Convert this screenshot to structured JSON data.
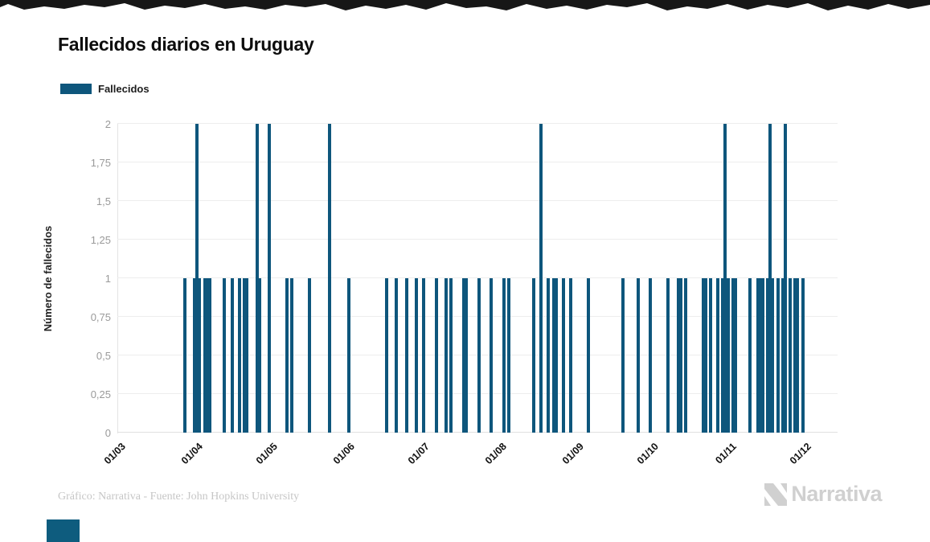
{
  "header": {
    "title": "Fallecidos diarios en Uruguay"
  },
  "legend": {
    "label": "Fallecidos",
    "color": "#0e567c"
  },
  "footer": {
    "credit": "Gráfico: Narrativa - Fuente: John Hopkins University",
    "logo_text": "Narrativa"
  },
  "colors": {
    "bar": "#0e567c",
    "grid": "#ededed",
    "tick_text": "#9a9a9a",
    "accent_block": "#0e5c7e"
  },
  "chart_data": {
    "type": "bar",
    "title": "Fallecidos diarios en Uruguay",
    "xlabel": "",
    "ylabel": "Número de fallecidos",
    "ylim": [
      0,
      2
    ],
    "grid": "horizontal",
    "legend_position": "top-left",
    "x_range": [
      "2020-03-01",
      "2020-12-15"
    ],
    "x_ticks": [
      {
        "date": "2020-03-01",
        "label": "01/03"
      },
      {
        "date": "2020-04-01",
        "label": "01/04"
      },
      {
        "date": "2020-05-01",
        "label": "01/05"
      },
      {
        "date": "2020-06-01",
        "label": "01/06"
      },
      {
        "date": "2020-07-01",
        "label": "01/07"
      },
      {
        "date": "2020-08-01",
        "label": "01/08"
      },
      {
        "date": "2020-09-01",
        "label": "01/09"
      },
      {
        "date": "2020-10-01",
        "label": "01/10"
      },
      {
        "date": "2020-11-01",
        "label": "01/11"
      },
      {
        "date": "2020-12-01",
        "label": "01/12"
      }
    ],
    "y_ticks": [
      {
        "value": 0,
        "label": "0"
      },
      {
        "value": 0.25,
        "label": "0,25"
      },
      {
        "value": 0.5,
        "label": "0,5"
      },
      {
        "value": 0.75,
        "label": "0,75"
      },
      {
        "value": 1,
        "label": "1"
      },
      {
        "value": 1.25,
        "label": "1,25"
      },
      {
        "value": 1.5,
        "label": "1,5"
      },
      {
        "value": 1.75,
        "label": "1,75"
      },
      {
        "value": 2,
        "label": "2"
      }
    ],
    "series": [
      {
        "name": "Fallecidos",
        "color": "#0e567c",
        "points": [
          {
            "date": "2020-03-28",
            "value": 1
          },
          {
            "date": "2020-04-01",
            "value": 1
          },
          {
            "date": "2020-04-02",
            "value": 2
          },
          {
            "date": "2020-04-03",
            "value": 1
          },
          {
            "date": "2020-04-05",
            "value": 1
          },
          {
            "date": "2020-04-06",
            "value": 1
          },
          {
            "date": "2020-04-07",
            "value": 1
          },
          {
            "date": "2020-04-13",
            "value": 1
          },
          {
            "date": "2020-04-16",
            "value": 1
          },
          {
            "date": "2020-04-19",
            "value": 1
          },
          {
            "date": "2020-04-21",
            "value": 1
          },
          {
            "date": "2020-04-22",
            "value": 1
          },
          {
            "date": "2020-04-26",
            "value": 2
          },
          {
            "date": "2020-04-27",
            "value": 1
          },
          {
            "date": "2020-05-01",
            "value": 2
          },
          {
            "date": "2020-05-08",
            "value": 1
          },
          {
            "date": "2020-05-10",
            "value": 1
          },
          {
            "date": "2020-05-17",
            "value": 1
          },
          {
            "date": "2020-05-25",
            "value": 2
          },
          {
            "date": "2020-06-02",
            "value": 1
          },
          {
            "date": "2020-06-17",
            "value": 1
          },
          {
            "date": "2020-06-21",
            "value": 1
          },
          {
            "date": "2020-06-25",
            "value": 1
          },
          {
            "date": "2020-06-29",
            "value": 1
          },
          {
            "date": "2020-07-02",
            "value": 1
          },
          {
            "date": "2020-07-07",
            "value": 1
          },
          {
            "date": "2020-07-11",
            "value": 1
          },
          {
            "date": "2020-07-13",
            "value": 1
          },
          {
            "date": "2020-07-18",
            "value": 1
          },
          {
            "date": "2020-07-19",
            "value": 1
          },
          {
            "date": "2020-07-24",
            "value": 1
          },
          {
            "date": "2020-07-29",
            "value": 1
          },
          {
            "date": "2020-08-03",
            "value": 1
          },
          {
            "date": "2020-08-05",
            "value": 1
          },
          {
            "date": "2020-08-15",
            "value": 1
          },
          {
            "date": "2020-08-18",
            "value": 2
          },
          {
            "date": "2020-08-21",
            "value": 1
          },
          {
            "date": "2020-08-23",
            "value": 1
          },
          {
            "date": "2020-08-24",
            "value": 1
          },
          {
            "date": "2020-08-27",
            "value": 1
          },
          {
            "date": "2020-08-30",
            "value": 1
          },
          {
            "date": "2020-09-06",
            "value": 1
          },
          {
            "date": "2020-09-20",
            "value": 1
          },
          {
            "date": "2020-09-26",
            "value": 1
          },
          {
            "date": "2020-10-01",
            "value": 1
          },
          {
            "date": "2020-10-08",
            "value": 1
          },
          {
            "date": "2020-10-12",
            "value": 1
          },
          {
            "date": "2020-10-13",
            "value": 1
          },
          {
            "date": "2020-10-15",
            "value": 1
          },
          {
            "date": "2020-10-22",
            "value": 1
          },
          {
            "date": "2020-10-23",
            "value": 1
          },
          {
            "date": "2020-10-25",
            "value": 1
          },
          {
            "date": "2020-10-28",
            "value": 1
          },
          {
            "date": "2020-10-30",
            "value": 1
          },
          {
            "date": "2020-10-31",
            "value": 2
          },
          {
            "date": "2020-11-01",
            "value": 1
          },
          {
            "date": "2020-11-03",
            "value": 1
          },
          {
            "date": "2020-11-04",
            "value": 1
          },
          {
            "date": "2020-11-10",
            "value": 1
          },
          {
            "date": "2020-11-13",
            "value": 1
          },
          {
            "date": "2020-11-14",
            "value": 1
          },
          {
            "date": "2020-11-15",
            "value": 1
          },
          {
            "date": "2020-11-17",
            "value": 1
          },
          {
            "date": "2020-11-18",
            "value": 2
          },
          {
            "date": "2020-11-19",
            "value": 1
          },
          {
            "date": "2020-11-21",
            "value": 1
          },
          {
            "date": "2020-11-23",
            "value": 1
          },
          {
            "date": "2020-11-24",
            "value": 2
          },
          {
            "date": "2020-11-26",
            "value": 1
          },
          {
            "date": "2020-11-28",
            "value": 1
          },
          {
            "date": "2020-11-29",
            "value": 1
          },
          {
            "date": "2020-12-01",
            "value": 1
          }
        ]
      }
    ]
  }
}
